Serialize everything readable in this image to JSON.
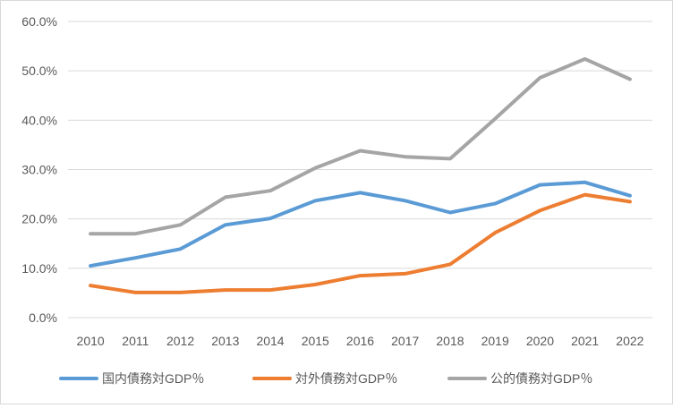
{
  "chart_data": {
    "type": "line",
    "title": "",
    "xlabel": "",
    "ylabel": "",
    "ylim": [
      0,
      60
    ],
    "y_ticks": [
      "0.0%",
      "10.0%",
      "20.0%",
      "30.0%",
      "40.0%",
      "50.0%",
      "60.0%"
    ],
    "y_tick_values": [
      0,
      10,
      20,
      30,
      40,
      50,
      60
    ],
    "grid": "horizontal",
    "legend_position": "bottom",
    "categories": [
      "2010",
      "2011",
      "2012",
      "2013",
      "2014",
      "2015",
      "2016",
      "2017",
      "2018",
      "2019",
      "2020",
      "2021",
      "2022"
    ],
    "series": [
      {
        "name": "国内債務対GDP％",
        "color": "#5b9bd5",
        "values": [
          10.5,
          12.1,
          13.9,
          18.8,
          20.1,
          23.7,
          25.3,
          23.7,
          21.3,
          23.1,
          26.9,
          27.4,
          24.7
        ]
      },
      {
        "name": "対外債務対GDP％",
        "color": "#ed7d31",
        "values": [
          6.5,
          5.1,
          5.1,
          5.6,
          5.6,
          6.7,
          8.5,
          8.9,
          10.8,
          17.2,
          21.7,
          24.9,
          23.5
        ]
      },
      {
        "name": "公的債務対GDP％",
        "color": "#a5a5a5",
        "values": [
          17.0,
          17.0,
          18.8,
          24.4,
          25.7,
          30.3,
          33.8,
          32.6,
          32.2,
          40.3,
          48.6,
          52.4,
          48.3
        ]
      }
    ]
  }
}
